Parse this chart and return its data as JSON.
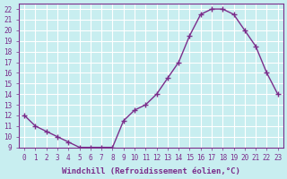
{
  "hours": [
    0,
    1,
    2,
    3,
    4,
    5,
    6,
    7,
    8,
    9,
    10,
    11,
    12,
    13,
    14,
    15,
    16,
    17,
    18,
    19,
    20,
    21,
    22,
    23
  ],
  "values": [
    12,
    11,
    10.5,
    10,
    9.5,
    9,
    9,
    9,
    9,
    11.5,
    12.5,
    13,
    14,
    15.5,
    17,
    19.5,
    21.5,
    22,
    22,
    21.5,
    20,
    18.5,
    16,
    14
  ],
  "line_color": "#7b2d8b",
  "marker": "+",
  "marker_size": 5,
  "background_color": "#c8eef0",
  "grid_color": "#ffffff",
  "xlabel": "Windchill (Refroidissement éolien,°C)",
  "xlabel_color": "#7b2d8b",
  "xlim": [
    -0.5,
    23.5
  ],
  "ylim": [
    9,
    22.5
  ],
  "yticks": [
    9,
    10,
    11,
    12,
    13,
    14,
    15,
    16,
    17,
    18,
    19,
    20,
    21,
    22
  ],
  "xticks": [
    0,
    1,
    2,
    3,
    4,
    5,
    6,
    7,
    8,
    9,
    10,
    11,
    12,
    13,
    14,
    15,
    16,
    17,
    18,
    19,
    20,
    21,
    22,
    23
  ],
  "tick_color": "#7b2d8b",
  "spine_color": "#7b2d8b",
  "label_fontsize": 6.5,
  "tick_fontsize": 5.5
}
